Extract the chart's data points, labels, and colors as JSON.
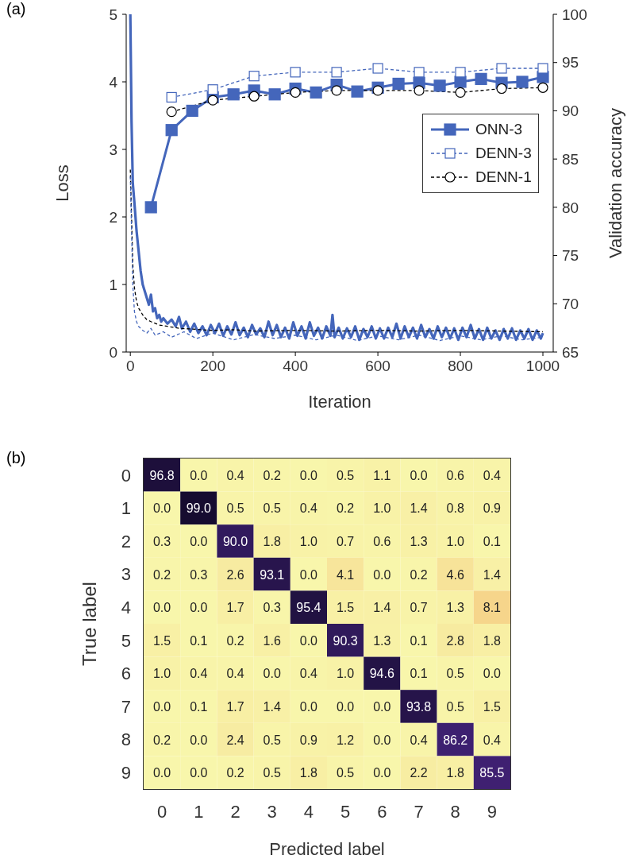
{
  "chart_data": [
    {
      "type": "line",
      "annotations": [
        "(a)"
      ],
      "xlabel": "Iteration",
      "ylabel": "Loss",
      "y2label": "Validation accuracy",
      "xlim": [
        -10,
        1025
      ],
      "xticks": [
        0,
        200,
        400,
        600,
        800,
        1000
      ],
      "ylim": [
        0,
        5
      ],
      "yticks": [
        0,
        1,
        2,
        3,
        4,
        5
      ],
      "y2lim": [
        65,
        100
      ],
      "y2ticks": [
        65,
        70,
        75,
        80,
        85,
        90,
        95,
        100
      ],
      "legend": "right",
      "series": [
        {
          "color": "#000000",
          "line_style": "dashed",
          "marker": "none",
          "x": [
            0,
            3,
            6,
            10,
            15,
            20,
            30,
            40,
            50,
            70,
            90,
            120,
            150,
            200,
            250,
            300,
            400,
            500,
            600,
            700,
            800,
            900,
            1000
          ],
          "values": [
            2.7,
            2.0,
            1.3,
            0.95,
            0.75,
            0.65,
            0.55,
            0.48,
            0.45,
            0.4,
            0.38,
            0.35,
            0.34,
            0.32,
            0.33,
            0.31,
            0.32,
            0.31,
            0.32,
            0.31,
            0.32,
            0.31,
            0.3
          ]
        },
        {
          "color": "#4466bb",
          "line_style": "dashed",
          "marker": "none",
          "x": [
            0,
            3,
            6,
            10,
            15,
            20,
            30,
            40,
            50,
            60,
            80,
            100,
            130,
            160,
            200,
            250,
            300,
            350,
            400,
            450,
            500,
            550,
            600,
            650,
            700,
            750,
            800,
            850,
            900,
            950,
            1000
          ],
          "values": [
            2.6,
            1.8,
            1.0,
            0.6,
            0.45,
            0.38,
            0.32,
            0.28,
            0.35,
            0.25,
            0.3,
            0.22,
            0.3,
            0.2,
            0.28,
            0.18,
            0.26,
            0.2,
            0.25,
            0.18,
            0.25,
            0.17,
            0.24,
            0.18,
            0.25,
            0.17,
            0.24,
            0.18,
            0.24,
            0.18,
            0.22
          ]
        },
        {
          "color": "#4466bb",
          "line_style": "solid",
          "marker": "none",
          "x": [
            0,
            3,
            6,
            10,
            15,
            20,
            25,
            30,
            35,
            40,
            45,
            50,
            55,
            60,
            65,
            70,
            75,
            80,
            90,
            100,
            110,
            118,
            125,
            135,
            145,
            155,
            165,
            175,
            185,
            195,
            205,
            215,
            225,
            235,
            245,
            255,
            265,
            275,
            285,
            295,
            305,
            315,
            325,
            335,
            345,
            355,
            365,
            375,
            385,
            395,
            405,
            415,
            425,
            435,
            445,
            455,
            465,
            475,
            485,
            490,
            495,
            505,
            515,
            525,
            535,
            545,
            555,
            565,
            575,
            585,
            595,
            605,
            615,
            625,
            635,
            645,
            655,
            665,
            675,
            685,
            695,
            705,
            715,
            725,
            735,
            745,
            755,
            765,
            775,
            785,
            795,
            805,
            815,
            825,
            835,
            845,
            855,
            865,
            875,
            885,
            895,
            905,
            915,
            925,
            935,
            945,
            955,
            965,
            975,
            985,
            995,
            1000
          ],
          "values": [
            5.0,
            3.4,
            2.5,
            2.2,
            1.8,
            1.5,
            1.2,
            1.0,
            0.9,
            0.8,
            0.7,
            0.85,
            0.6,
            0.65,
            0.5,
            0.55,
            0.45,
            0.5,
            0.42,
            0.48,
            0.38,
            0.52,
            0.35,
            0.45,
            0.3,
            0.42,
            0.28,
            0.38,
            0.25,
            0.4,
            0.28,
            0.42,
            0.24,
            0.38,
            0.26,
            0.44,
            0.25,
            0.36,
            0.22,
            0.4,
            0.26,
            0.35,
            0.22,
            0.45,
            0.25,
            0.4,
            0.22,
            0.36,
            0.2,
            0.44,
            0.24,
            0.38,
            0.2,
            0.44,
            0.24,
            0.36,
            0.2,
            0.38,
            0.24,
            0.55,
            0.22,
            0.36,
            0.2,
            0.35,
            0.22,
            0.38,
            0.18,
            0.34,
            0.22,
            0.38,
            0.2,
            0.35,
            0.2,
            0.36,
            0.22,
            0.42,
            0.2,
            0.38,
            0.22,
            0.36,
            0.2,
            0.4,
            0.22,
            0.34,
            0.2,
            0.38,
            0.22,
            0.36,
            0.2,
            0.35,
            0.18,
            0.36,
            0.22,
            0.4,
            0.2,
            0.34,
            0.18,
            0.36,
            0.2,
            0.32,
            0.18,
            0.34,
            0.2,
            0.35,
            0.18,
            0.32,
            0.2,
            0.34,
            0.18,
            0.32,
            0.2,
            0.28
          ]
        },
        {
          "name": "ONN-3",
          "axis": "y2",
          "color": "#4466bb",
          "line_style": "solid",
          "marker": "square",
          "x": [
            50,
            100,
            150,
            200,
            250,
            300,
            350,
            400,
            450,
            500,
            550,
            600,
            650,
            700,
            750,
            800,
            850,
            900,
            950,
            1000
          ],
          "values": [
            80.0,
            88.0,
            90.0,
            91.4,
            91.7,
            92.1,
            91.7,
            92.3,
            91.9,
            92.7,
            92.0,
            92.4,
            92.8,
            92.9,
            92.6,
            93.0,
            93.3,
            92.9,
            93.0,
            93.5
          ]
        },
        {
          "name": "DENN-3",
          "axis": "y2",
          "color": "#4466bb",
          "line_style": "dashed",
          "marker": "square",
          "x": [
            100,
            200,
            300,
            400,
            500,
            600,
            700,
            800,
            900,
            1000
          ],
          "values": [
            91.4,
            92.2,
            93.6,
            94.0,
            94.0,
            94.4,
            94.0,
            94.0,
            94.4,
            94.4
          ]
        },
        {
          "name": "DENN-1",
          "axis": "y2",
          "color": "#000000",
          "line_style": "dashed",
          "marker": "circle",
          "x": [
            100,
            200,
            300,
            400,
            500,
            600,
            700,
            800,
            900,
            1000
          ],
          "values": [
            89.9,
            91.1,
            91.5,
            91.9,
            92.1,
            92.1,
            92.1,
            91.9,
            92.3,
            92.4
          ]
        }
      ]
    },
    {
      "type": "heatmap",
      "annotations": [
        "(b)"
      ],
      "xlabel": "Predicted label",
      "ylabel": "True label",
      "data_labels": true,
      "categories": [
        "0",
        "1",
        "2",
        "3",
        "4",
        "5",
        "6",
        "7",
        "8",
        "9"
      ],
      "y_categories": [
        "0",
        "1",
        "2",
        "3",
        "4",
        "5",
        "6",
        "7",
        "8",
        "9"
      ],
      "cells": [
        [
          96.8,
          0.0,
          0.4,
          0.2,
          0.0,
          0.5,
          1.1,
          0.0,
          0.6,
          0.4
        ],
        [
          0.0,
          99.0,
          0.5,
          0.5,
          0.4,
          0.2,
          1.0,
          1.4,
          0.8,
          0.9
        ],
        [
          0.3,
          0.0,
          90.0,
          1.8,
          1.0,
          0.7,
          0.6,
          1.3,
          1.0,
          0.1
        ],
        [
          0.2,
          0.3,
          2.6,
          93.1,
          0.0,
          4.1,
          0.0,
          0.2,
          4.6,
          1.4
        ],
        [
          0.0,
          0.0,
          1.7,
          0.3,
          95.4,
          1.5,
          1.4,
          0.7,
          1.3,
          8.1
        ],
        [
          1.5,
          0.1,
          0.2,
          1.6,
          0.0,
          90.3,
          1.3,
          0.1,
          2.8,
          1.8
        ],
        [
          1.0,
          0.4,
          0.4,
          0.0,
          0.4,
          1.0,
          94.6,
          0.1,
          0.5,
          0.0
        ],
        [
          0.0,
          0.1,
          1.7,
          1.4,
          0.0,
          0.0,
          0.0,
          93.8,
          0.5,
          1.5
        ],
        [
          0.2,
          0.0,
          2.4,
          0.5,
          0.9,
          1.2,
          0.0,
          0.4,
          86.2,
          0.4
        ],
        [
          0.0,
          0.0,
          0.2,
          0.5,
          1.8,
          0.5,
          0.0,
          2.2,
          1.8,
          85.5
        ]
      ],
      "cell_labels": [
        [
          "96.8",
          "0.0",
          "0.4",
          "0.2",
          "0.0",
          "0.5",
          "1.1",
          "0.0",
          "0.6",
          "0.4"
        ],
        [
          "0.0",
          "99.0",
          "0.5",
          "0.5",
          "0.4",
          "0.2",
          "1.0",
          "1.4",
          "0.8",
          "0.9"
        ],
        [
          "0.3",
          "0.0",
          "90.0",
          "1.8",
          "1.0",
          "0.7",
          "0.6",
          "1.3",
          "1.0",
          "0.1"
        ],
        [
          "0.2",
          "0.3",
          "2.6",
          "93.1",
          "0.0",
          "4.1",
          "0.0",
          "0.2",
          "4.6",
          "1.4"
        ],
        [
          "0.0",
          "0.0",
          "1.7",
          "0.3",
          "95.4",
          "1.5",
          "1.4",
          "0.7",
          "1.3",
          "8.1"
        ],
        [
          "1.5",
          "0.1",
          "0.2",
          "1.6",
          "0.0",
          "90.3",
          "1.3",
          "0.1",
          "2.8",
          "1.8"
        ],
        [
          "1.0",
          "0.4",
          "0.4",
          "0.0",
          "0.4",
          "1.0",
          "94.6",
          "0.1",
          "0.5",
          "0.0"
        ],
        [
          "0.0",
          "0.1",
          "1.7",
          "1.4",
          "0.0",
          "0.0",
          "0.0",
          "93.8",
          "0.5",
          "1.5"
        ],
        [
          "0.2",
          "0.0",
          "2.4",
          "0.5",
          "0.9",
          "1.2",
          "0.0",
          "0.4",
          "86.2",
          "0.4"
        ],
        [
          "0.0",
          "0.0",
          "0.2",
          "0.5",
          "1.8",
          "0.5",
          "0.0",
          "2.2",
          "1.8",
          "85.5"
        ]
      ]
    }
  ]
}
